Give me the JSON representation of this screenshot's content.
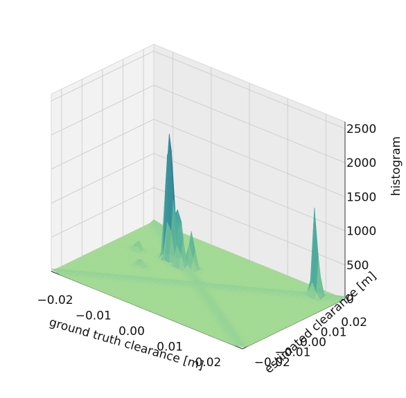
{
  "chart_data": {
    "type": "surface3d",
    "xlabel": "ground truth clearance [m]",
    "ylabel": "estimated clearance [m]",
    "zlabel": "histogram",
    "xlim": [
      -0.025,
      0.025
    ],
    "ylim": [
      -0.025,
      0.025
    ],
    "zlim": [
      0,
      2600
    ],
    "x_ticks": [
      "−0.02",
      "−0.01",
      "0.00",
      "0.01",
      "0.02"
    ],
    "x_tick_values": [
      -0.02,
      -0.01,
      0.0,
      0.01,
      0.02
    ],
    "y_ticks": [
      "−0.02",
      "−0.01",
      "0.00",
      "0.01",
      "0.02"
    ],
    "y_tick_values": [
      -0.02,
      -0.01,
      0.0,
      0.01,
      0.02
    ],
    "z_ticks": [
      "0",
      "500",
      "1000",
      "1500",
      "2000",
      "2500"
    ],
    "z_tick_values": [
      0,
      500,
      1000,
      1500,
      2000,
      2500
    ],
    "colormap": "crest (green to dark blue)",
    "colors": {
      "low": "#9ed98f",
      "mid": "#3aa0a0",
      "high": "#2a2a7a"
    },
    "grid": true,
    "peaks": [
      {
        "x": -0.012,
        "y": 0.008,
        "z": 2350
      },
      {
        "x": -0.011,
        "y": 0.007,
        "z": 1400
      },
      {
        "x": -0.01,
        "y": 0.009,
        "z": 1050
      },
      {
        "x": -0.008,
        "y": 0.006,
        "z": 800
      },
      {
        "x": -0.006,
        "y": 0.008,
        "z": 650
      },
      {
        "x": 0.02,
        "y": 0.02,
        "z": 1400
      },
      {
        "x": -0.019,
        "y": 0.006,
        "z": 160
      },
      {
        "x": -0.014,
        "y": -0.002,
        "z": 120
      }
    ]
  }
}
